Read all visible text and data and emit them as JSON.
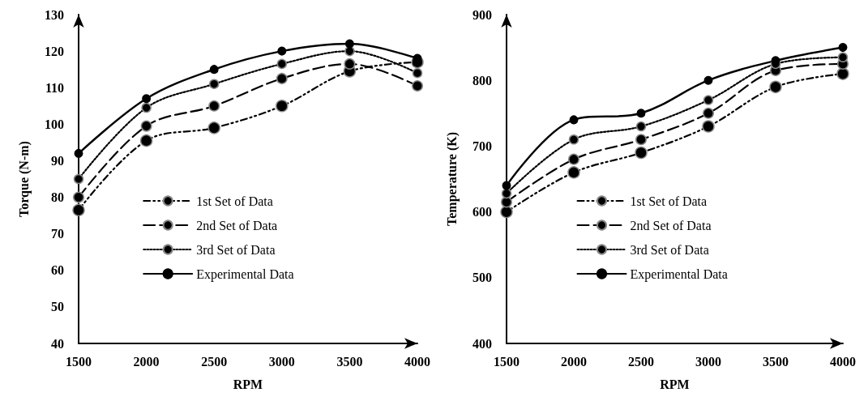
{
  "chart_data": [
    {
      "type": "line",
      "xlabel": "RPM",
      "ylabel": "Torque (N-m)",
      "x": [
        1500,
        2000,
        2500,
        3000,
        3500,
        4000
      ],
      "xlim": [
        1500,
        4000
      ],
      "xticks": [
        1500,
        2000,
        2500,
        3000,
        3500,
        4000
      ],
      "ylim": [
        40,
        130
      ],
      "yticks": [
        40,
        50,
        60,
        70,
        80,
        90,
        100,
        110,
        120,
        130
      ],
      "grid": false,
      "legend": "bottom",
      "marker": "circle",
      "series": [
        {
          "name": "1st Set of Data",
          "color": "#000000",
          "line_style": "dashed",
          "values": [
            76.5,
            95.5,
            99,
            105,
            114.5,
            117
          ]
        },
        {
          "name": "2nd Set of Data",
          "color": "#000000",
          "line_style": "dashed",
          "values": [
            80,
            99.5,
            105,
            112.5,
            116.5,
            110.5
          ]
        },
        {
          "name": "3rd Set of Data",
          "color": "#000000",
          "line_style": "dotted",
          "values": [
            85,
            104.5,
            111,
            116.5,
            120,
            114
          ]
        },
        {
          "name": "Experimental Data",
          "color": "#000000",
          "line_style": "solid",
          "values": [
            92,
            107,
            115,
            120,
            122,
            118
          ]
        }
      ]
    },
    {
      "type": "line",
      "xlabel": "RPM",
      "ylabel": "Temperature (K)",
      "x": [
        1500,
        2000,
        2500,
        3000,
        3500,
        4000
      ],
      "xlim": [
        1500,
        4000
      ],
      "xticks": [
        1500,
        2000,
        2500,
        3000,
        3500,
        4000
      ],
      "ylim": [
        400,
        900
      ],
      "yticks": [
        400,
        500,
        600,
        700,
        800,
        900
      ],
      "grid": false,
      "legend": "bottom",
      "marker": "circle",
      "series": [
        {
          "name": "1st Set of Data",
          "color": "#000000",
          "line_style": "dashed",
          "values": [
            600,
            660,
            690,
            730,
            790,
            810
          ]
        },
        {
          "name": "2nd Set of Data",
          "color": "#000000",
          "line_style": "dashed",
          "values": [
            615,
            680,
            710,
            750,
            815,
            825
          ]
        },
        {
          "name": "3rd Set of Data",
          "color": "#000000",
          "line_style": "dotted",
          "values": [
            628,
            710,
            730,
            770,
            825,
            835
          ]
        },
        {
          "name": "Experimental Data",
          "color": "#000000",
          "line_style": "solid",
          "values": [
            640,
            740,
            750,
            800,
            830,
            850
          ]
        }
      ]
    }
  ]
}
